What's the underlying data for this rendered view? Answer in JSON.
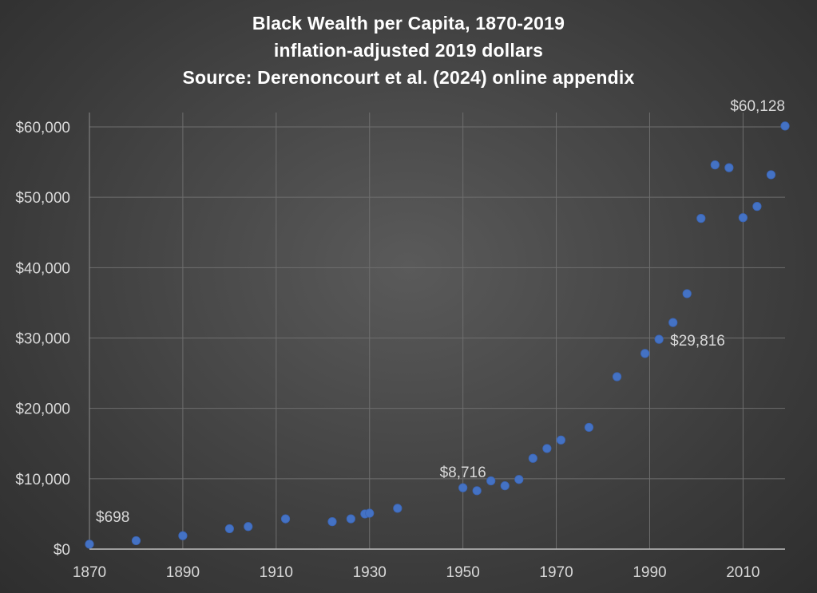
{
  "chart_data": {
    "type": "scatter",
    "title": "Black Wealth per Capita, 1870-2019",
    "subtitle": "inflation-adjusted 2019 dollars",
    "source": "Source: Derenoncourt et al. (2024) online appendix",
    "xlabel": "",
    "ylabel": "",
    "xlim": [
      1870,
      2019
    ],
    "ylim": [
      0,
      60000
    ],
    "grid": true,
    "marker_color": "#4472c4",
    "x_ticks": [
      1870,
      1890,
      1910,
      1930,
      1950,
      1970,
      1990,
      2010
    ],
    "x_tick_labels": [
      "1870",
      "1890",
      "1910",
      "1930",
      "1950",
      "1970",
      "1990",
      "2010"
    ],
    "y_ticks": [
      0,
      10000,
      20000,
      30000,
      40000,
      50000,
      60000
    ],
    "y_tick_labels": [
      "$0",
      "$10,000",
      "$20,000",
      "$30,000",
      "$40,000",
      "$50,000",
      "$60,000"
    ],
    "points": [
      {
        "x": 1870,
        "y": 698
      },
      {
        "x": 1880,
        "y": 1200
      },
      {
        "x": 1890,
        "y": 1900
      },
      {
        "x": 1900,
        "y": 2900
      },
      {
        "x": 1904,
        "y": 3200
      },
      {
        "x": 1912,
        "y": 4300
      },
      {
        "x": 1922,
        "y": 3900
      },
      {
        "x": 1926,
        "y": 4300
      },
      {
        "x": 1929,
        "y": 5000
      },
      {
        "x": 1930,
        "y": 5100
      },
      {
        "x": 1936,
        "y": 5800
      },
      {
        "x": 1950,
        "y": 8716
      },
      {
        "x": 1953,
        "y": 8300
      },
      {
        "x": 1956,
        "y": 9700
      },
      {
        "x": 1959,
        "y": 9000
      },
      {
        "x": 1962,
        "y": 9900
      },
      {
        "x": 1965,
        "y": 12900
      },
      {
        "x": 1968,
        "y": 14300
      },
      {
        "x": 1971,
        "y": 15500
      },
      {
        "x": 1977,
        "y": 17300
      },
      {
        "x": 1983,
        "y": 24500
      },
      {
        "x": 1989,
        "y": 27800
      },
      {
        "x": 1992,
        "y": 29816
      },
      {
        "x": 1995,
        "y": 32200
      },
      {
        "x": 1998,
        "y": 36300
      },
      {
        "x": 2001,
        "y": 47000
      },
      {
        "x": 2004,
        "y": 54600
      },
      {
        "x": 2007,
        "y": 54200
      },
      {
        "x": 2010,
        "y": 47100
      },
      {
        "x": 2013,
        "y": 48700
      },
      {
        "x": 2016,
        "y": 53200
      },
      {
        "x": 2019,
        "y": 60128
      }
    ],
    "annotations": [
      {
        "x": 1870,
        "y": 698,
        "text": "$698",
        "position": "above-right"
      },
      {
        "x": 1950,
        "y": 8716,
        "text": "$8,716",
        "position": "above"
      },
      {
        "x": 1992,
        "y": 29816,
        "text": "$29,816",
        "position": "right"
      },
      {
        "x": 2019,
        "y": 60128,
        "text": "$60,128",
        "position": "above"
      }
    ]
  }
}
